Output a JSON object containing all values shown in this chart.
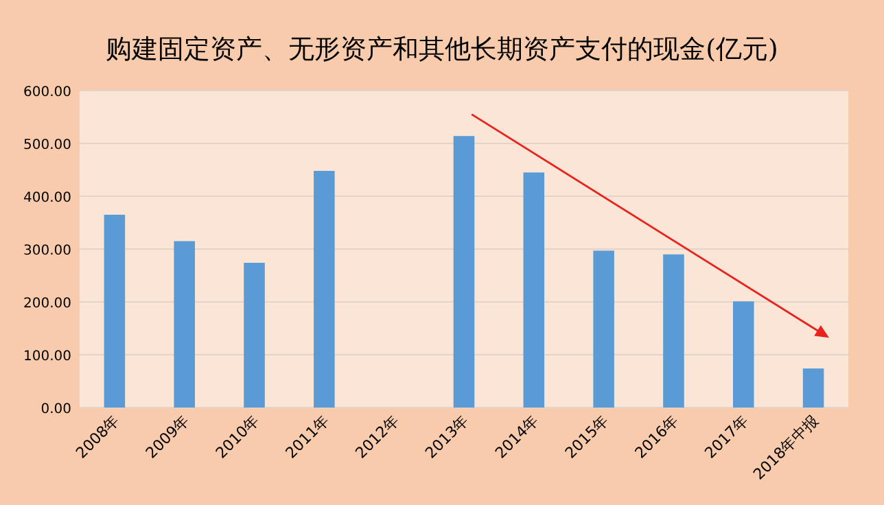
{
  "chart_data": {
    "type": "bar",
    "title": "购建固定资产、无形资产和其他长期资产支付的现金(亿元)",
    "categories": [
      "2008年",
      "2009年",
      "2010年",
      "2011年",
      "2012年",
      "2013年",
      "2014年",
      "2015年",
      "2016年",
      "2017年",
      "2018年中报"
    ],
    "series": [
      {
        "color": "#5b9bd5",
        "values": [
          365,
          315,
          274,
          448,
          null,
          514,
          445,
          297,
          290,
          201,
          74
        ]
      }
    ],
    "ylim": [
      0,
      600
    ],
    "yticks": [
      {
        "value": 0,
        "label": "0.00"
      },
      {
        "value": 100,
        "label": "100.00"
      },
      {
        "value": 200,
        "label": "200.00"
      },
      {
        "value": 300,
        "label": "300.00"
      },
      {
        "value": 400,
        "label": "400.00"
      },
      {
        "value": 500,
        "label": "500.00"
      },
      {
        "value": 600,
        "label": "600.00"
      }
    ],
    "grid": "y"
  }
}
